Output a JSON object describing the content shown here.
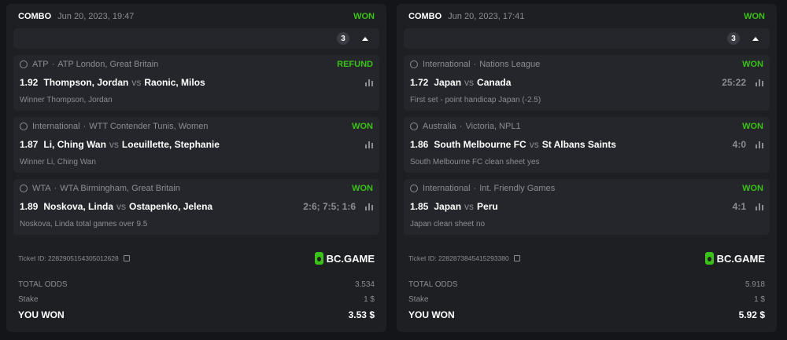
{
  "tickets": [
    {
      "type": "COMBO",
      "date": "Jun 20, 2023, 19:47",
      "status": "WON",
      "count": "3",
      "items": [
        {
          "sport_icon": "tennis-icon",
          "category": "ATP",
          "league": "ATP London, Great Britain",
          "status": "REFUND",
          "odds": "1.92",
          "home": "Thompson, Jordan",
          "vs": "vs",
          "away": "Raonic, Milos",
          "score": "",
          "selection": "Winner Thompson, Jordan"
        },
        {
          "sport_icon": "table-tennis-icon",
          "category": "International",
          "league": "WTT Contender Tunis, Women",
          "status": "WON",
          "odds": "1.87",
          "home": "Li, Ching Wan",
          "vs": "vs",
          "away": "Loeuillette, Stephanie",
          "score": "",
          "selection": "Winner Li, Ching Wan"
        },
        {
          "sport_icon": "tennis-icon",
          "category": "WTA",
          "league": "WTA Birmingham, Great Britain",
          "status": "WON",
          "odds": "1.89",
          "home": "Noskova, Linda",
          "vs": "vs",
          "away": "Ostapenko, Jelena",
          "score": "2:6; 7:5; 1:6",
          "selection": "Noskova, Linda total games over 9.5"
        }
      ],
      "ticket_id": "Ticket ID: 2282905154305012628",
      "brand": "BC.GAME",
      "total_odds_label": "TOTAL ODDS",
      "total_odds": "3.534",
      "stake_label": "Stake",
      "stake": "1 $",
      "won_label": "YOU WON",
      "won": "3.53 $"
    },
    {
      "type": "COMBO",
      "date": "Jun 20, 2023, 17:41",
      "status": "WON",
      "count": "3",
      "items": [
        {
          "sport_icon": "volleyball-icon",
          "category": "International",
          "league": "Nations League",
          "status": "WON",
          "odds": "1.72",
          "home": "Japan",
          "vs": "vs",
          "away": "Canada",
          "score": "25:22",
          "selection": "First set - point handicap Japan (-2.5)"
        },
        {
          "sport_icon": "soccer-icon",
          "category": "Australia",
          "league": "Victoria, NPL1",
          "status": "WON",
          "odds": "1.86",
          "home": "South Melbourne FC",
          "vs": "vs",
          "away": "St Albans Saints",
          "score": "4:0",
          "selection": "South Melbourne FC clean sheet yes"
        },
        {
          "sport_icon": "soccer-icon",
          "category": "International",
          "league": "Int. Friendly Games",
          "status": "WON",
          "odds": "1.85",
          "home": "Japan",
          "vs": "vs",
          "away": "Peru",
          "score": "4:1",
          "selection": "Japan clean sheet no"
        }
      ],
      "ticket_id": "Ticket ID: 2282873845415293380",
      "brand": "BC.GAME",
      "total_odds_label": "TOTAL ODDS",
      "total_odds": "5.918",
      "stake_label": "Stake",
      "stake": "1 $",
      "won_label": "YOU WON",
      "won": "5.92 $"
    }
  ],
  "colors": {
    "won": "#3bc117",
    "card": "#1d1f23",
    "item": "#24262b"
  }
}
